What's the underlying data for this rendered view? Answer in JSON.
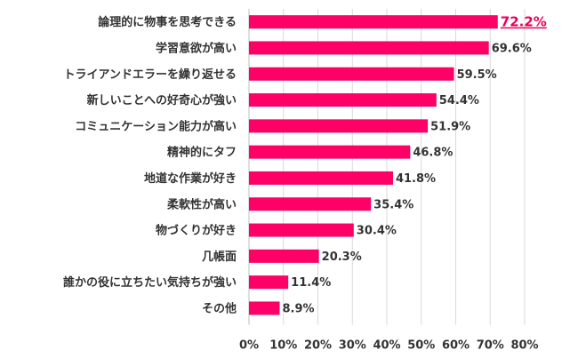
{
  "chart_data": {
    "type": "bar",
    "orientation": "horizontal",
    "categories": [
      "論理的に物事を思考できる",
      "学習意欲が高い",
      "トライアンドエラーを繰り返せる",
      "新しいことへの好奇心が強い",
      "コミュニケーション能力が高い",
      "精神的にタフ",
      "地道な作業が好き",
      "柔軟性が高い",
      "物づくりが好き",
      "几帳面",
      "誰かの役に立ちたい気持ちが強い",
      "その他"
    ],
    "values": [
      72.2,
      69.6,
      59.5,
      54.4,
      51.9,
      46.8,
      41.8,
      35.4,
      30.4,
      20.3,
      11.4,
      8.9
    ],
    "value_labels": [
      "72.2%",
      "69.6%",
      "59.5%",
      "54.4%",
      "51.9%",
      "46.8%",
      "41.8%",
      "35.4%",
      "30.4%",
      "20.3%",
      "11.4%",
      "8.9%"
    ],
    "highlight_index": 0,
    "xlim": [
      0,
      80
    ],
    "x_ticks": [
      0,
      10,
      20,
      30,
      40,
      50,
      60,
      70,
      80
    ],
    "x_tick_labels": [
      "0%",
      "10%",
      "20%",
      "30%",
      "40%",
      "50%",
      "60%",
      "70%",
      "80%"
    ],
    "grid": true,
    "bar_color": "#ff0066",
    "highlight_color": "#e8005a",
    "title": "",
    "xlabel": "",
    "ylabel": ""
  }
}
